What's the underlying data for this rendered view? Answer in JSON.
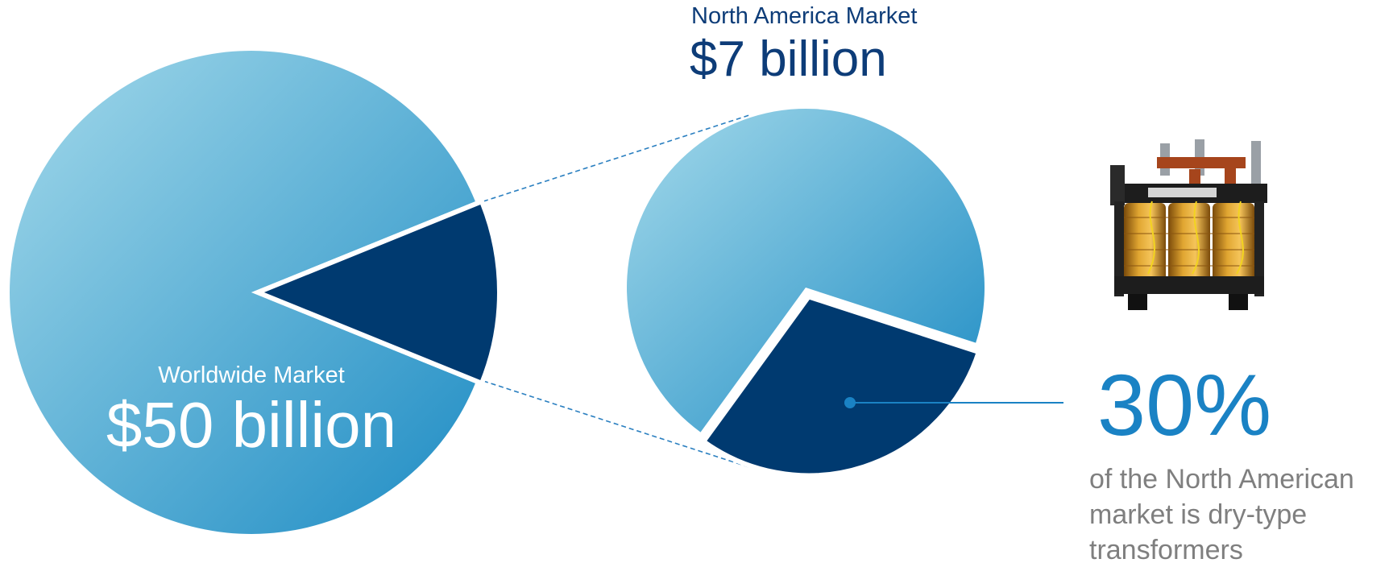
{
  "colors": {
    "pie_light_start": "#a3d9ea",
    "pie_light_end": "#1e8cc4",
    "slice_dark": "#003a70",
    "title_navy": "#0d3c78",
    "accent_blue": "#1a82c4",
    "caption_gray": "#7f7f7f",
    "connector": "#2a7fc0"
  },
  "worldwide": {
    "label": "Worldwide Market",
    "value_label": "$50 billion"
  },
  "north_america": {
    "label": "North America Market",
    "value_label": "$7 billion"
  },
  "dry_type": {
    "percent_label": "30%",
    "caption_lines": [
      "of the North American",
      "market is dry-type",
      "transformers"
    ],
    "image_icon": "transformer-photo"
  },
  "chart_data": [
    {
      "type": "pie",
      "name": "worldwide-market",
      "values": [
        50,
        7
      ],
      "units": "billion USD",
      "highlighted_slice": 1,
      "slice_colors": [
        "gradient-light-blue",
        "#003a70"
      ]
    },
    {
      "type": "pie",
      "name": "north-america-market",
      "values": [
        70,
        30
      ],
      "units": "percent",
      "highlighted_slice": 1,
      "slice_colors": [
        "gradient-light-blue",
        "#003a70"
      ]
    }
  ]
}
